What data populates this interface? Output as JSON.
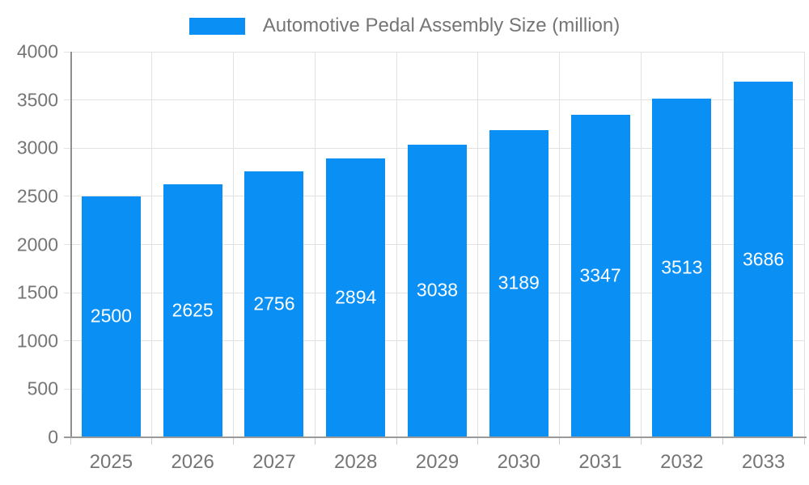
{
  "chart_data": {
    "type": "bar",
    "title": "",
    "legend": {
      "position": "top",
      "label": "Automotive Pedal Assembly Size (million)"
    },
    "categories": [
      "2025",
      "2026",
      "2027",
      "2028",
      "2029",
      "2030",
      "2031",
      "2032",
      "2033"
    ],
    "values": [
      2500,
      2625,
      2756,
      2894,
      3038,
      3189,
      3347,
      3513,
      3686
    ],
    "data_labels": [
      "2500",
      "2625",
      "2756",
      "2894",
      "3038",
      "3189",
      "3347",
      "3513",
      "3686"
    ],
    "xlabel": "",
    "ylabel": "",
    "ylim": [
      0,
      4000
    ],
    "ytick_step": 500,
    "ytick_labels": [
      "0",
      "500",
      "1000",
      "1500",
      "2000",
      "2500",
      "3000",
      "3500",
      "4000"
    ],
    "grid": "on",
    "colors": {
      "bar": "#0a90f5",
      "bar_value_text": "#ffffff",
      "axis_text": "#757575",
      "gridline": "#e2e2e2",
      "axis_line": "#8f8f8f"
    }
  }
}
